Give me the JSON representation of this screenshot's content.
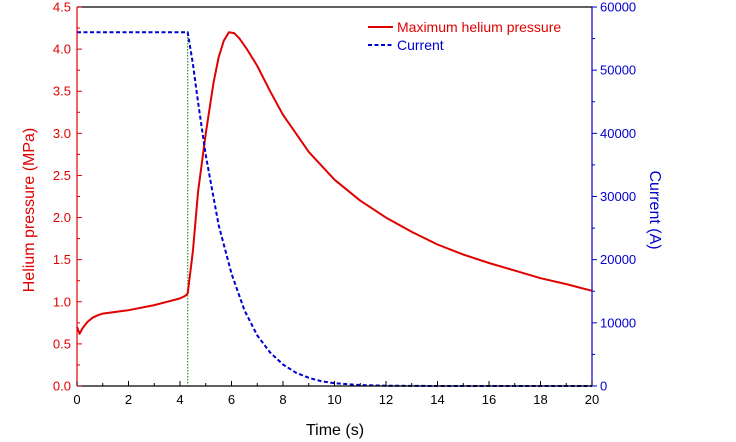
{
  "chart_data": {
    "type": "line",
    "title": "",
    "xlabel": "Time (s)",
    "ylabel": "Helium pressure (MPa)",
    "y2label": "Current (A)",
    "xlim": [
      0,
      20
    ],
    "ylim": [
      0.0,
      4.5
    ],
    "y2lim": [
      0,
      60000
    ],
    "x_ticks": [
      "0",
      "2",
      "4",
      "6",
      "8",
      "10",
      "12",
      "14",
      "16",
      "18",
      "20"
    ],
    "y_ticks": [
      "0.0",
      "0.5",
      "1.0",
      "1.5",
      "2.0",
      "2.5",
      "3.0",
      "3.5",
      "4.0",
      "4.5"
    ],
    "y2_ticks": [
      "0",
      "10000",
      "20000",
      "30000",
      "40000",
      "50000",
      "60000"
    ],
    "grid": false,
    "legend_position": "top-right",
    "vertical_marker_x": 4.3,
    "colors": {
      "pressure": "#e00000",
      "current": "#0000d0",
      "marker": "#008000",
      "axes": "#000000"
    },
    "series": [
      {
        "name": "Maximum helium pressure",
        "axis": "left",
        "style": "solid",
        "x": [
          0,
          0.1,
          0.2,
          0.4,
          0.6,
          0.8,
          1.0,
          1.5,
          2.0,
          2.5,
          3.0,
          3.5,
          4.0,
          4.2,
          4.3,
          4.5,
          4.7,
          5.0,
          5.3,
          5.5,
          5.7,
          5.9,
          6.1,
          6.3,
          6.6,
          7.0,
          7.5,
          8.0,
          9.0,
          10.0,
          11.0,
          12.0,
          13.0,
          14.0,
          15.0,
          16.0,
          17.0,
          18.0,
          19.0,
          20.0
        ],
        "values": [
          0.7,
          0.62,
          0.68,
          0.76,
          0.81,
          0.84,
          0.86,
          0.88,
          0.9,
          0.93,
          0.96,
          1.0,
          1.04,
          1.07,
          1.1,
          1.6,
          2.3,
          3.0,
          3.6,
          3.9,
          4.1,
          4.2,
          4.19,
          4.13,
          4.0,
          3.8,
          3.5,
          3.22,
          2.78,
          2.45,
          2.2,
          2.0,
          1.83,
          1.68,
          1.56,
          1.46,
          1.37,
          1.28,
          1.21,
          1.13
        ]
      },
      {
        "name": "Current",
        "axis": "right",
        "style": "dashed",
        "x": [
          0,
          4.3,
          4.5,
          4.7,
          5.0,
          5.5,
          6.0,
          6.5,
          7.0,
          7.5,
          8.0,
          8.5,
          9.0,
          9.5,
          10.0,
          11.0,
          12.0,
          14.0,
          16.0,
          18.0,
          20.0
        ],
        "values": [
          56000,
          56000,
          51000,
          45000,
          36500,
          25500,
          17800,
          12000,
          8000,
          5300,
          3400,
          2100,
          1300,
          750,
          450,
          150,
          50,
          0,
          0,
          0,
          0
        ]
      }
    ]
  }
}
